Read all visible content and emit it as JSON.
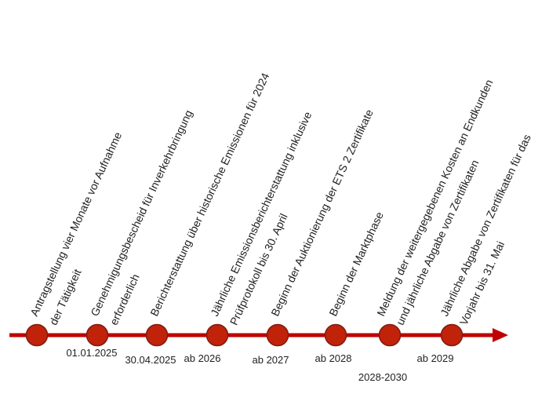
{
  "timeline": {
    "line_color": "#c00000",
    "marker_fill": "#c0230a",
    "marker_stroke": "#7f1b10",
    "events": [
      {
        "lines": [
          "Antragstellung vier Monate vor Aufnahme",
          "der Tätigkeit"
        ],
        "date": "01.01.2025"
      },
      {
        "lines": [
          "Genehmigungsbescheid für Inverkehrbringung",
          "erforderlich"
        ],
        "date": ""
      },
      {
        "lines": [
          "Berichterstattung über historische Emissionen für 2024"
        ],
        "date": "30.04.2025"
      },
      {
        "lines": [
          "Jährliche Emissionsberichterstattung inklusive",
          "Prüfprotokoll bis 30. April"
        ],
        "date": "ab 2026"
      },
      {
        "lines": [
          "Beginn der Auktionierung der ETS 2 Zertifikate"
        ],
        "date": "ab 2027"
      },
      {
        "lines": [
          "Beginn der Marktphase"
        ],
        "date": "ab 2028"
      },
      {
        "lines": [
          "Meldung der weitergegebenen Kosten an Endkunden",
          "und jährliche Abgabe von Zertifikaten"
        ],
        "date": "2028-2030"
      },
      {
        "lines": [
          "Jährliche Abgabe von Zertifikaten für das",
          "Vorjahr bis 31. Mai"
        ],
        "date": "ab 2029"
      }
    ]
  }
}
